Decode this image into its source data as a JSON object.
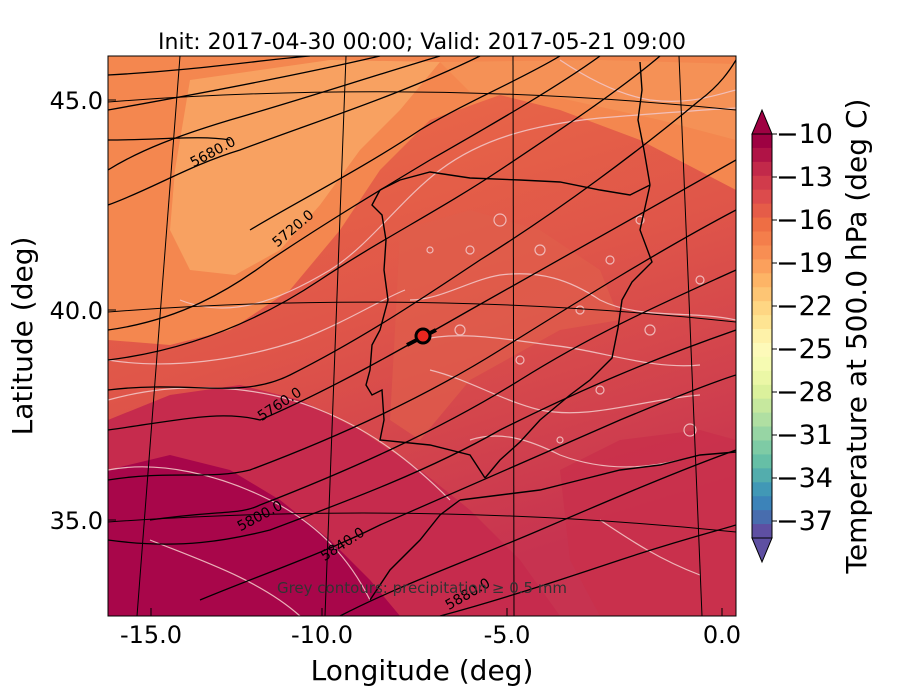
{
  "title": "Init: 2017-04-30 00:00; Valid: 2017-05-21 09:00",
  "xlabel": "Longitude (deg)",
  "ylabel": "Latitude (deg)",
  "x_ticks": [
    "-15.0",
    "-10.0",
    "-5.0",
    "0.0"
  ],
  "y_ticks": [
    "45.0",
    "40.0",
    "35.0"
  ],
  "colorbar": {
    "label": "Temperature at 500.0 hPa (deg C)",
    "ticks": [
      "−10",
      "−13",
      "−16",
      "−19",
      "−22",
      "−25",
      "−28",
      "−31",
      "−34",
      "−37"
    ],
    "colormap": "Spectral",
    "extend": "both"
  },
  "height_contour_labels": [
    "5680.0",
    "5720.0",
    "5760.0",
    "5800.0",
    "5840.0",
    "5880.0"
  ],
  "annotation": "Grey contours: precipitation ≥ 0.5 mm",
  "marker": {
    "lon": -7.6,
    "lat": 39.3,
    "color": "#e8261f"
  },
  "map_extent": {
    "lon": [
      -16.0,
      0.3
    ],
    "lat": [
      32.6,
      46.0
    ]
  },
  "colors": {
    "warm_orange": "#f59257",
    "mid_orange": "#ec6c48",
    "red": "#db4c4f",
    "crimson": "#c2294c",
    "deep_crimson": "#a8064a"
  }
}
